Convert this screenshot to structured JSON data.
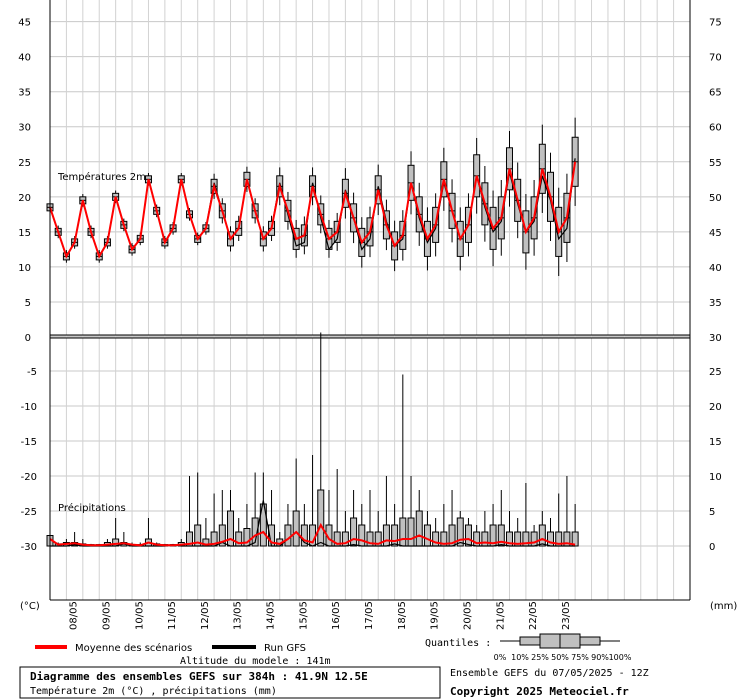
{
  "chart_data": {
    "type": "line",
    "title": "Diagramme des ensembles GEFS sur 384h : 41.9N 12.5E",
    "subtitle": "Température 2m (°C) , précipitations (mm)",
    "altitude_label": "Altitude du modele : 141m",
    "run_label": "Ensemble GEFS du 07/05/2025 - 12Z",
    "copyright": "Copyright 2025 Meteociel.fr",
    "legend": {
      "mean": "Moyenne des scénarios",
      "run": "Run GFS",
      "quantiles_label": "Quantiles :",
      "quantile_ticks": [
        "0%",
        "10%",
        "25%",
        "50%",
        "75%",
        "90%",
        "100%"
      ],
      "mean_color": "#ff0000",
      "run_color": "#000000"
    },
    "x_dates": [
      "08/05",
      "09/05",
      "10/05",
      "11/05",
      "12/05",
      "13/05",
      "14/05",
      "15/05",
      "16/05",
      "17/05",
      "18/05",
      "19/05",
      "20/05",
      "21/05",
      "22/05",
      "23/05"
    ],
    "x_start_date": "07/05",
    "step_hours": 6,
    "temperature": {
      "label": "Températures 2m",
      "left_axis_unit": "(°C)",
      "left_ticks": [
        45,
        40,
        35,
        30,
        25,
        20,
        15,
        10,
        5,
        0
      ],
      "right_ticks": [
        75,
        70,
        65,
        60,
        55,
        50,
        45,
        40,
        35,
        30
      ],
      "ylim": [
        0,
        45
      ],
      "mean": [
        18.5,
        15.0,
        11.5,
        13.5,
        19.5,
        15.0,
        11.5,
        13.5,
        20.0,
        16.0,
        12.5,
        14.0,
        22.5,
        18.0,
        13.5,
        15.5,
        22.5,
        17.5,
        14.0,
        15.5,
        21.5,
        18.0,
        14.0,
        15.5,
        22.5,
        18.0,
        14.0,
        15.5,
        21.5,
        18.0,
        14.0,
        14.5,
        21.5,
        17.5,
        14.0,
        15.0,
        20.5,
        17.0,
        13.5,
        15.0,
        21.0,
        16.0,
        13.0,
        14.5,
        22.0,
        17.5,
        14.0,
        16.0,
        22.5,
        18.0,
        14.0,
        16.0,
        23.0,
        19.0,
        15.5,
        17.0,
        24.0,
        19.5,
        15.0,
        17.0,
        24.0,
        20.0,
        15.0,
        17.0,
        25.0
      ],
      "run": [
        18.5,
        15.0,
        11.5,
        13.5,
        19.5,
        15.0,
        11.5,
        13.5,
        20.0,
        16.0,
        12.5,
        14.0,
        22.5,
        18.0,
        13.5,
        15.5,
        22.5,
        17.5,
        14.0,
        15.5,
        22.0,
        18.0,
        14.0,
        15.5,
        22.5,
        18.0,
        14.0,
        15.5,
        22.0,
        17.5,
        13.0,
        13.5,
        22.0,
        17.0,
        12.5,
        14.0,
        21.0,
        17.0,
        12.5,
        14.0,
        21.5,
        16.5,
        13.0,
        14.0,
        22.0,
        17.0,
        13.5,
        15.5,
        22.0,
        18.0,
        14.0,
        16.0,
        23.0,
        18.5,
        15.0,
        16.5,
        23.5,
        19.0,
        15.0,
        16.5,
        23.0,
        19.5,
        14.0,
        15.5,
        25.5
      ],
      "spread": [
        0.5,
        0.5,
        0.5,
        0.5,
        0.5,
        0.5,
        0.5,
        0.5,
        0.5,
        0.5,
        0.5,
        0.5,
        0.5,
        0.5,
        0.5,
        0.5,
        0.5,
        0.5,
        0.5,
        0.5,
        1.0,
        1.0,
        1.0,
        1.0,
        1.0,
        1.0,
        1.0,
        1.0,
        1.5,
        1.5,
        1.5,
        1.5,
        1.5,
        1.5,
        1.5,
        1.5,
        2.0,
        2.0,
        2.0,
        2.0,
        2.0,
        2.0,
        2.0,
        2.0,
        2.5,
        2.5,
        2.5,
        2.5,
        2.5,
        2.5,
        2.5,
        2.5,
        3.0,
        3.0,
        3.0,
        3.0,
        3.0,
        3.0,
        3.0,
        3.0,
        3.5,
        3.5,
        3.5,
        3.5,
        3.5
      ]
    },
    "precipitation": {
      "label": "Précipitations",
      "right_axis_unit": "(mm)",
      "left_ticks": [
        0,
        -5,
        -10,
        -15,
        -20,
        -25,
        -30
      ],
      "right_ticks": [
        30,
        25,
        20,
        15,
        10,
        5,
        0
      ],
      "ylim": [
        0,
        30
      ],
      "mean": [
        1.0,
        0.2,
        0.3,
        0.4,
        0.2,
        0.1,
        0.1,
        0.2,
        0.3,
        0.4,
        0.2,
        0.1,
        0.5,
        0.2,
        0.1,
        0.1,
        0.2,
        0.3,
        0.5,
        0.2,
        0.3,
        0.6,
        1.0,
        0.4,
        0.5,
        1.5,
        2.0,
        0.5,
        0.3,
        1.0,
        2.0,
        0.8,
        0.5,
        3.0,
        1.0,
        0.3,
        0.4,
        1.0,
        0.8,
        0.4,
        0.3,
        0.8,
        0.7,
        1.0,
        1.0,
        1.5,
        1.0,
        0.5,
        0.3,
        0.4,
        0.9,
        1.0,
        0.4,
        0.5,
        0.4,
        0.6,
        0.4,
        0.3,
        0.4,
        0.5,
        1.0,
        0.5,
        0.3,
        0.4,
        0.2
      ],
      "run": [
        0.0,
        0.0,
        0.0,
        0.2,
        0.0,
        0.0,
        0.0,
        0.0,
        0.0,
        0.3,
        0.0,
        0.0,
        0.0,
        0.0,
        0.0,
        0.2,
        0.0,
        0.0,
        0.0,
        0.0,
        0.0,
        0.5,
        0.0,
        0.0,
        0.0,
        0.5,
        6.5,
        0.0,
        0.0,
        1.0,
        2.0,
        0.5,
        0.0,
        0.5,
        0.0,
        0.0,
        0.0,
        0.2,
        0.0,
        0.0,
        0.0,
        0.0,
        0.3,
        0.0,
        0.0,
        0.0,
        0.0,
        0.0,
        0.0,
        0.0,
        0.5,
        0.2,
        0.0,
        0.0,
        0.0,
        0.2,
        0.0,
        0.0,
        0.0,
        0.0,
        0.3,
        0.0,
        0.0,
        0.0,
        0.0
      ],
      "max": [
        2.0,
        0.5,
        1.0,
        2.0,
        1.0,
        0.3,
        0.3,
        1.0,
        4.0,
        2.0,
        0.5,
        0.5,
        4.0,
        0.5,
        0.3,
        0.3,
        1.0,
        10.0,
        10.5,
        4.0,
        7.5,
        8.0,
        8.0,
        4.0,
        6.0,
        10.5,
        10.5,
        8.0,
        2.0,
        6.0,
        12.5,
        6.0,
        13.0,
        40.0,
        8.0,
        11.0,
        5.0,
        8.0,
        6.0,
        8.0,
        5.0,
        10.0,
        6.0,
        24.5,
        10.0,
        8.0,
        5.0,
        4.0,
        6.0,
        8.0,
        5.0,
        4.0,
        3.0,
        5.0,
        6.0,
        8.0,
        5.0,
        4.0,
        9.0,
        3.0,
        5.0,
        4.0,
        7.5,
        10.0,
        6.0
      ],
      "p90": [
        1.5,
        0.3,
        0.5,
        0.5,
        0.3,
        0.2,
        0.2,
        0.5,
        1.0,
        0.5,
        0.2,
        0.2,
        1.0,
        0.3,
        0.2,
        0.2,
        0.5,
        2.0,
        3.0,
        1.0,
        2.0,
        3.0,
        5.0,
        2.0,
        2.5,
        4.0,
        6.0,
        3.0,
        1.0,
        3.0,
        5.0,
        3.0,
        3.0,
        8.0,
        3.0,
        2.0,
        2.0,
        4.0,
        3.0,
        2.0,
        2.0,
        3.0,
        3.0,
        4.0,
        4.0,
        5.0,
        3.0,
        2.0,
        2.0,
        3.0,
        4.0,
        3.0,
        2.0,
        2.0,
        3.0,
        3.0,
        2.0,
        2.0,
        2.0,
        2.0,
        3.0,
        2.0,
        2.0,
        2.0,
        2.0
      ]
    }
  }
}
